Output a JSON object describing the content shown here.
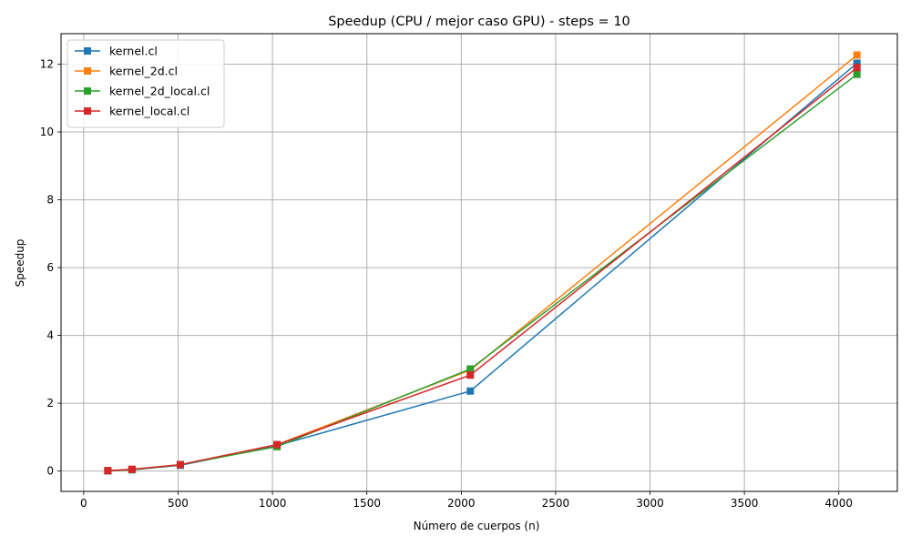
{
  "chart_data": {
    "type": "line",
    "title": "Speedup (CPU / mejor caso GPU) - steps = 10",
    "xlabel": "Número de cuerpos (n)",
    "ylabel": "Speedup",
    "xlim": [
      -120,
      4310
    ],
    "ylim": [
      -0.6,
      12.9
    ],
    "xticks": [
      0,
      500,
      1000,
      1500,
      2000,
      2500,
      3000,
      3500,
      4000
    ],
    "yticks": [
      0,
      2,
      4,
      6,
      8,
      10,
      12
    ],
    "grid": true,
    "legend_position": "top-left",
    "marker": "square",
    "x": [
      128,
      256,
      512,
      1024,
      2048,
      4096
    ],
    "series": [
      {
        "name": "kernel.cl",
        "color": "#1f77b4",
        "values": [
          0.01,
          0.04,
          0.17,
          0.75,
          2.36,
          12.03
        ]
      },
      {
        "name": "kernel_2d.cl",
        "color": "#ff7f0e",
        "values": [
          0.01,
          0.05,
          0.19,
          0.78,
          2.98,
          12.27
        ]
      },
      {
        "name": "kernel_2d_local.cl",
        "color": "#2ca02c",
        "values": [
          0.01,
          0.04,
          0.19,
          0.72,
          3.01,
          11.7
        ]
      },
      {
        "name": "kernel_local.cl",
        "color": "#d62728",
        "values": [
          0.01,
          0.05,
          0.19,
          0.78,
          2.83,
          11.9
        ]
      }
    ]
  }
}
